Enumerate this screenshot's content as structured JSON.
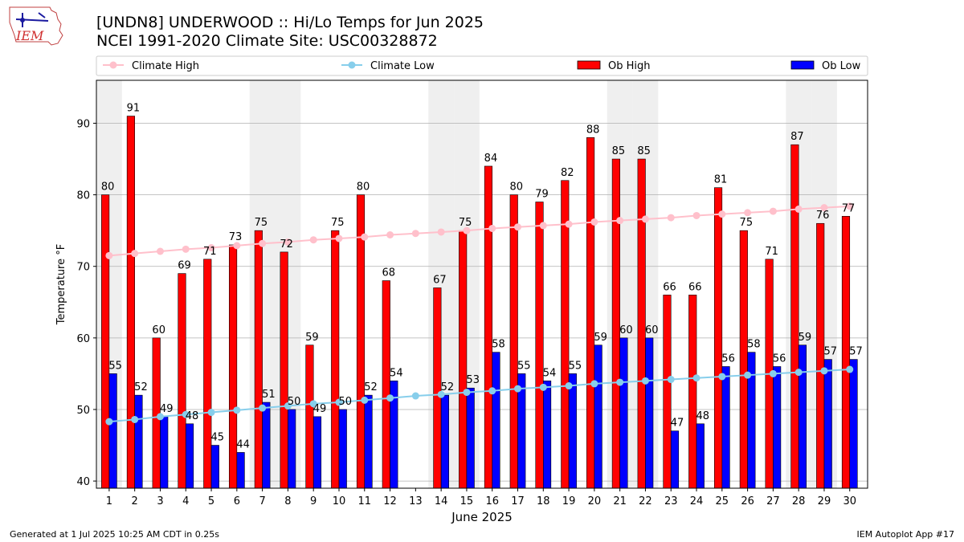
{
  "header": {
    "title_line1": "[UNDN8] UNDERWOOD :: Hi/Lo Temps for Jun 2025",
    "title_line2": "NCEI 1991-2020 Climate Site: USC00328872",
    "logo_text": "IEM"
  },
  "footer": {
    "left": "Generated at 1 Jul 2025 10:25 AM CDT in 0.25s",
    "right": "IEM Autoplot App #17"
  },
  "colors": {
    "ob_high": "#ff0000",
    "ob_low": "#0000ff",
    "climate_high": "#ffc0cb",
    "climate_low": "#87ceeb",
    "weekend_shade": "#efefef"
  },
  "chart_data": {
    "type": "bar",
    "xlabel": "June 2025",
    "ylabel": "Temperature °F",
    "ylim": [
      39,
      96
    ],
    "yticks": [
      40,
      50,
      60,
      70,
      80,
      90
    ],
    "grid": true,
    "legend_position": "top",
    "categories": [
      "1",
      "2",
      "3",
      "4",
      "5",
      "6",
      "7",
      "8",
      "9",
      "10",
      "11",
      "12",
      "13",
      "14",
      "15",
      "16",
      "17",
      "18",
      "19",
      "20",
      "21",
      "22",
      "23",
      "24",
      "25",
      "26",
      "27",
      "28",
      "29",
      "30"
    ],
    "weekend_days": [
      1,
      7,
      8,
      14,
      15,
      21,
      22,
      28,
      29
    ],
    "series": [
      {
        "name": "Climate High",
        "kind": "line",
        "values": [
          71.5,
          71.8,
          72.1,
          72.4,
          72.6,
          72.9,
          73.2,
          73.4,
          73.7,
          73.9,
          74.1,
          74.4,
          74.6,
          74.8,
          75.0,
          75.3,
          75.5,
          75.7,
          75.9,
          76.2,
          76.4,
          76.6,
          76.8,
          77.1,
          77.3,
          77.5,
          77.7,
          78.0,
          78.2,
          78.4
        ]
      },
      {
        "name": "Climate Low",
        "kind": "line",
        "values": [
          48.3,
          48.6,
          49.0,
          49.3,
          49.6,
          49.9,
          50.2,
          50.5,
          50.8,
          51.0,
          51.3,
          51.6,
          51.9,
          52.1,
          52.4,
          52.6,
          52.9,
          53.1,
          53.3,
          53.6,
          53.8,
          54.0,
          54.2,
          54.4,
          54.6,
          54.8,
          55.0,
          55.2,
          55.4,
          55.6
        ]
      },
      {
        "name": "Ob High",
        "kind": "bar",
        "values": [
          80,
          91,
          60,
          69,
          71,
          73,
          75,
          72,
          59,
          75,
          80,
          68,
          null,
          67,
          75,
          84,
          80,
          79,
          82,
          88,
          85,
          85,
          66,
          66,
          81,
          75,
          71,
          87,
          76,
          77
        ]
      },
      {
        "name": "Ob Low",
        "kind": "bar",
        "values": [
          55,
          52,
          49,
          48,
          45,
          44,
          51,
          50,
          49,
          50,
          52,
          54,
          null,
          52,
          53,
          58,
          55,
          54,
          55,
          59,
          60,
          60,
          47,
          48,
          56,
          58,
          56,
          59,
          57,
          57
        ]
      }
    ]
  }
}
